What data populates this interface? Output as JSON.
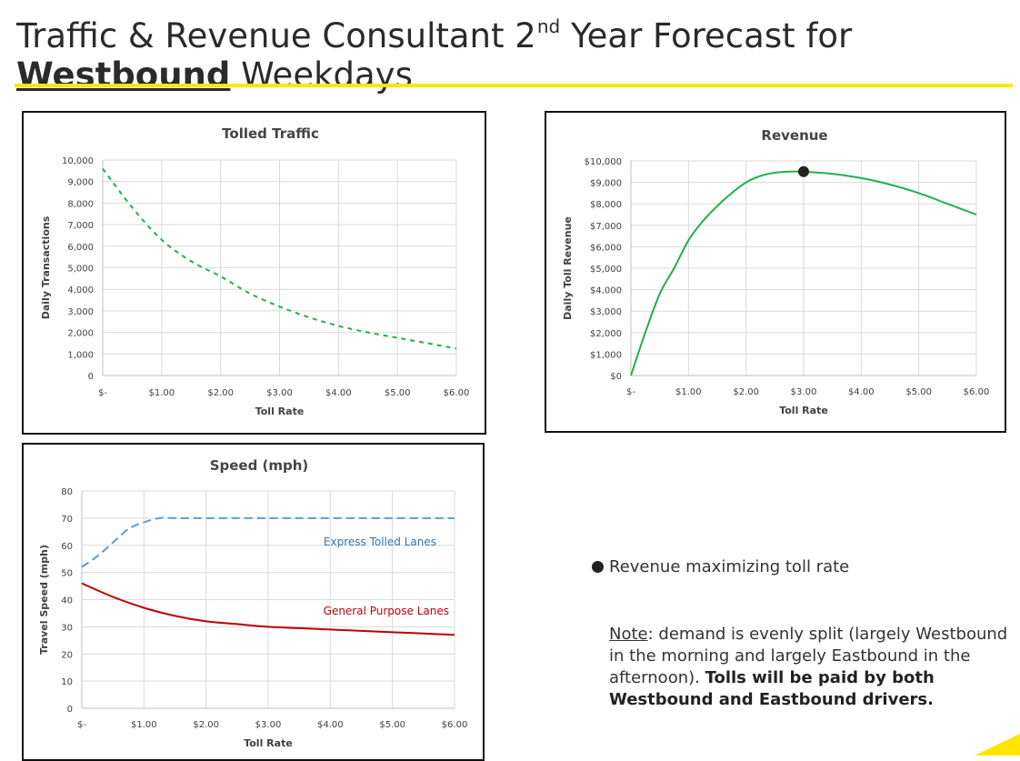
{
  "title": {
    "line1_pre": "Traffic & Revenue Consultant 2",
    "line1_sup": "nd",
    "line1_post": " Year Forecast for",
    "line2_bold": "Westbound",
    "line2_rest": " Weekdays"
  },
  "legend": {
    "label": "Revenue maximizing toll rate"
  },
  "note": {
    "label": "Note",
    "text": ": demand is evenly split (largely Westbound in the morning and largely Eastbound in the afternoon). ",
    "bold": "Tolls will be paid by both Westbound and Eastbound drivers."
  },
  "chart_data": [
    {
      "type": "line",
      "title": "Tolled Traffic",
      "xlabel": "Toll Rate",
      "ylabel": "Daily Transactions",
      "xlim": [
        0,
        6
      ],
      "ylim": [
        0,
        10000
      ],
      "x_ticks": [
        0,
        1,
        2,
        3,
        4,
        5,
        6
      ],
      "x_tick_labels": [
        "$-",
        "$1.00",
        "$2.00",
        "$3.00",
        "$4.00",
        "$5.00",
        "$6.00"
      ],
      "y_ticks": [
        0,
        1000,
        2000,
        3000,
        4000,
        5000,
        6000,
        7000,
        8000,
        9000,
        10000
      ],
      "y_tick_labels": [
        "0",
        "1,000",
        "2,000",
        "3,000",
        "4,000",
        "5,000",
        "6,000",
        "7,000",
        "8,000",
        "9,000",
        "10,000"
      ],
      "grid": true,
      "series": [
        {
          "color": "#22b04b",
          "dash": "dashed",
          "x": [
            0,
            0.5,
            1,
            1.5,
            2,
            2.5,
            3,
            3.5,
            4,
            4.5,
            5,
            5.5,
            6
          ],
          "values": [
            9600,
            7800,
            6300,
            5300,
            4600,
            3800,
            3200,
            2700,
            2300,
            2000,
            1750,
            1500,
            1250
          ]
        }
      ]
    },
    {
      "type": "line",
      "title": "Revenue",
      "xlabel": "Toll Rate",
      "ylabel": "Daily Toll Revenue",
      "xlim": [
        0,
        6
      ],
      "ylim": [
        0,
        10000
      ],
      "x_ticks": [
        0,
        1,
        2,
        3,
        4,
        5,
        6
      ],
      "x_tick_labels": [
        "$-",
        "$1.00",
        "$2.00",
        "$3.00",
        "$4.00",
        "$5.00",
        "$6.00"
      ],
      "y_ticks": [
        0,
        1000,
        2000,
        3000,
        4000,
        5000,
        6000,
        7000,
        8000,
        9000,
        10000
      ],
      "y_tick_labels": [
        "$0",
        "$1,000",
        "$2,000",
        "$3,000",
        "$4,000",
        "$5,000",
        "$6,000",
        "$7,000",
        "$8,000",
        "$9,000",
        "$10,000"
      ],
      "grid": true,
      "series": [
        {
          "color": "#22b04b",
          "dash": "solid",
          "x": [
            0,
            0.25,
            0.5,
            0.75,
            1,
            1.25,
            1.5,
            1.75,
            2,
            2.25,
            2.5,
            2.75,
            3,
            3.5,
            4,
            4.5,
            5,
            5.5,
            6
          ],
          "values": [
            0,
            2000,
            3800,
            5000,
            6300,
            7200,
            7900,
            8500,
            9000,
            9300,
            9450,
            9500,
            9500,
            9400,
            9200,
            8900,
            8500,
            8000,
            7500
          ]
        }
      ],
      "marker": {
        "x": 3,
        "y": 9500,
        "color": "#222222"
      }
    },
    {
      "type": "line",
      "title": "Speed (mph)",
      "xlabel": "Toll Rate",
      "ylabel": "Travel Speed (mph)",
      "xlim": [
        0,
        6
      ],
      "ylim": [
        0,
        80
      ],
      "x_ticks": [
        0,
        1,
        2,
        3,
        4,
        5,
        6
      ],
      "x_tick_labels": [
        "$-",
        "$1.00",
        "$2.00",
        "$3.00",
        "$4.00",
        "$5.00",
        "$6.00"
      ],
      "y_ticks": [
        0,
        10,
        20,
        30,
        40,
        50,
        60,
        70,
        80
      ],
      "y_tick_labels": [
        "0",
        "10",
        "20",
        "30",
        "40",
        "50",
        "60",
        "70",
        "80"
      ],
      "grid": true,
      "series": [
        {
          "name": "Express Tolled Lanes",
          "color": "#5b9bd5",
          "dash": "dashed",
          "x": [
            0,
            0.25,
            0.5,
            0.75,
            1,
            1.25,
            1.5,
            2,
            3,
            4,
            5,
            6
          ],
          "values": [
            52,
            56,
            61,
            66,
            68.5,
            70,
            70,
            70,
            70,
            70,
            70,
            70
          ]
        },
        {
          "name": "General Purpose Lanes",
          "color": "#c00000",
          "dash": "solid",
          "x": [
            0,
            0.5,
            1,
            1.5,
            2,
            2.5,
            3,
            3.5,
            4,
            4.5,
            5,
            5.5,
            6
          ],
          "values": [
            46,
            41,
            37,
            34,
            32,
            31,
            30,
            29.5,
            29,
            28.5,
            28,
            27.5,
            27
          ]
        }
      ]
    }
  ]
}
